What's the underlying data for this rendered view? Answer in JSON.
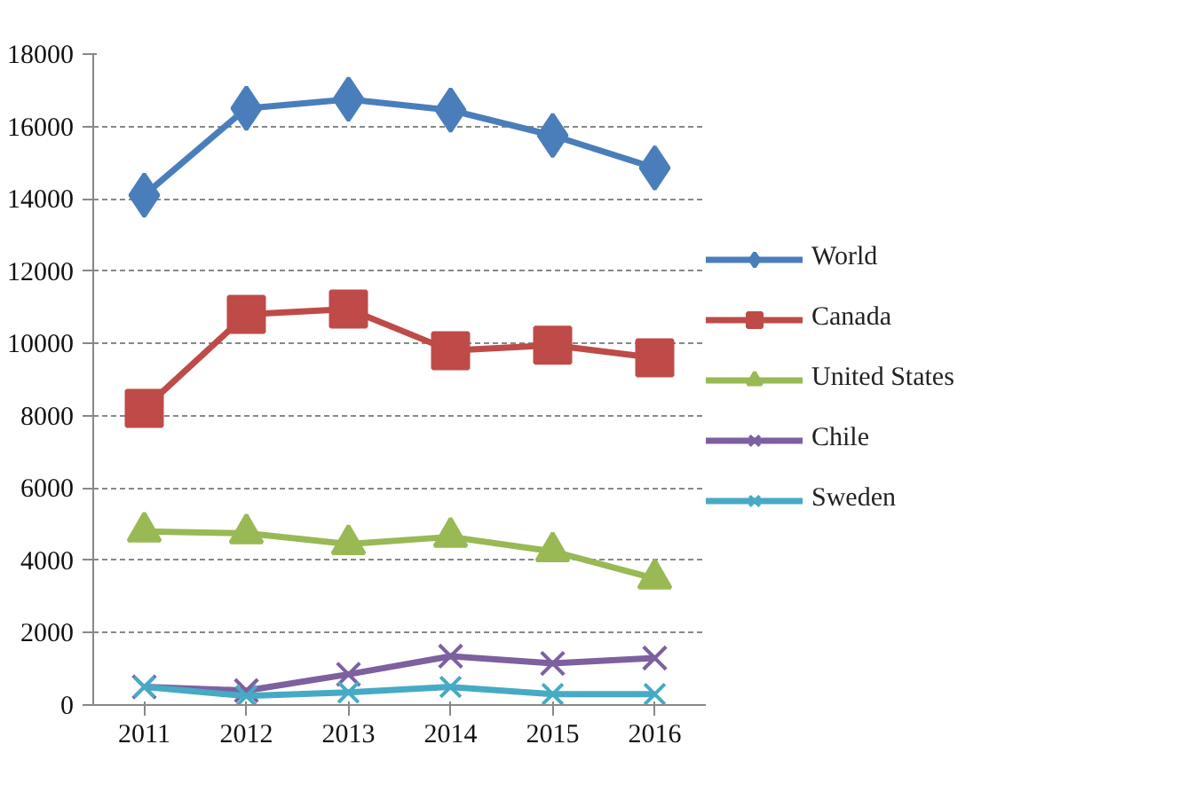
{
  "chart_data": {
    "type": "line",
    "categories": [
      "2011",
      "2012",
      "2013",
      "2014",
      "2015",
      "2016"
    ],
    "series": [
      {
        "name": "World",
        "color": "#4a7ebb",
        "marker": "diamond",
        "values": [
          14100,
          16500,
          16750,
          16450,
          15750,
          14850
        ]
      },
      {
        "name": "Canada",
        "color": "#be4b48",
        "marker": "square",
        "values": [
          8200,
          10800,
          10950,
          9800,
          9950,
          9600
        ]
      },
      {
        "name": "United States",
        "color": "#98b954",
        "marker": "triangle",
        "values": [
          4800,
          4750,
          4450,
          4650,
          4250,
          3500
        ]
      },
      {
        "name": "Chile",
        "color": "#7d60a0",
        "marker": "cross",
        "values": [
          500,
          400,
          850,
          1350,
          1150,
          1300
        ]
      },
      {
        "name": "Sweden",
        "color": "#46aac5",
        "marker": "cross",
        "values": [
          500,
          250,
          350,
          500,
          300,
          300
        ]
      }
    ],
    "ylim": [
      0,
      18000
    ],
    "yticks": [
      0,
      2000,
      4000,
      6000,
      8000,
      10000,
      12000,
      14000,
      16000,
      18000
    ],
    "grid": "y",
    "legend": "right",
    "line_style": "solid"
  }
}
